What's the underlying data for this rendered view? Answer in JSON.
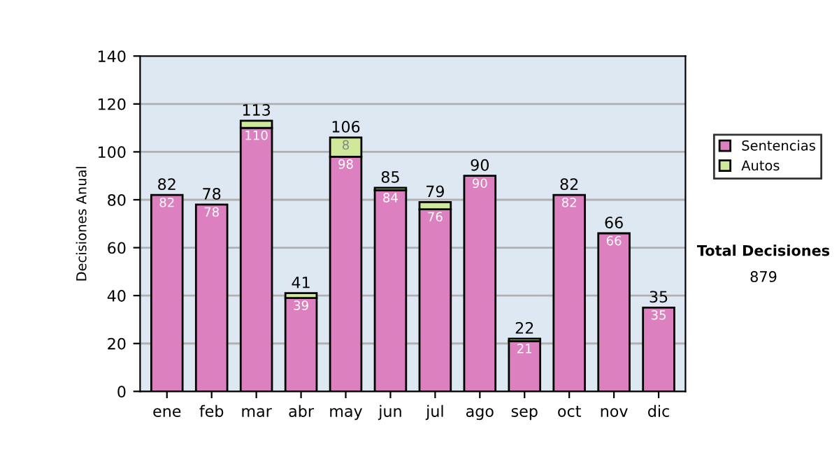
{
  "chart_data": {
    "type": "bar",
    "stacked": true,
    "ylabel": "Decisiones Anual",
    "categories": [
      "ene",
      "feb",
      "mar",
      "abr",
      "may",
      "jun",
      "jul",
      "ago",
      "sep",
      "oct",
      "nov",
      "dic"
    ],
    "series": [
      {
        "name": "Sentencias",
        "color": "#dd80c0",
        "values": [
          82,
          78,
          110,
          39,
          98,
          84,
          76,
          90,
          21,
          82,
          66,
          35
        ],
        "value_labels": [
          "82",
          "78",
          "110",
          "39",
          "98",
          "84",
          "76",
          "90",
          "21",
          "82",
          "66",
          "35"
        ]
      },
      {
        "name": "Autos",
        "color": "#cfe89a",
        "values": [
          null,
          null,
          3,
          2,
          8,
          1,
          3,
          null,
          1,
          null,
          null,
          null
        ],
        "value_labels": [
          null,
          null,
          null,
          null,
          "8",
          null,
          null,
          null,
          null,
          null,
          null,
          null
        ]
      }
    ],
    "totals": [
      "82",
      "78",
      "113",
      "41",
      "106",
      "85",
      "79",
      "90",
      "22",
      "82",
      "66",
      "35"
    ],
    "ylim": [
      0,
      140
    ],
    "yticks": [
      0,
      20,
      40,
      60,
      80,
      100,
      120,
      140
    ],
    "grid": "y",
    "legend": "right",
    "annotations": [
      "Total Decisiones",
      "879"
    ]
  }
}
